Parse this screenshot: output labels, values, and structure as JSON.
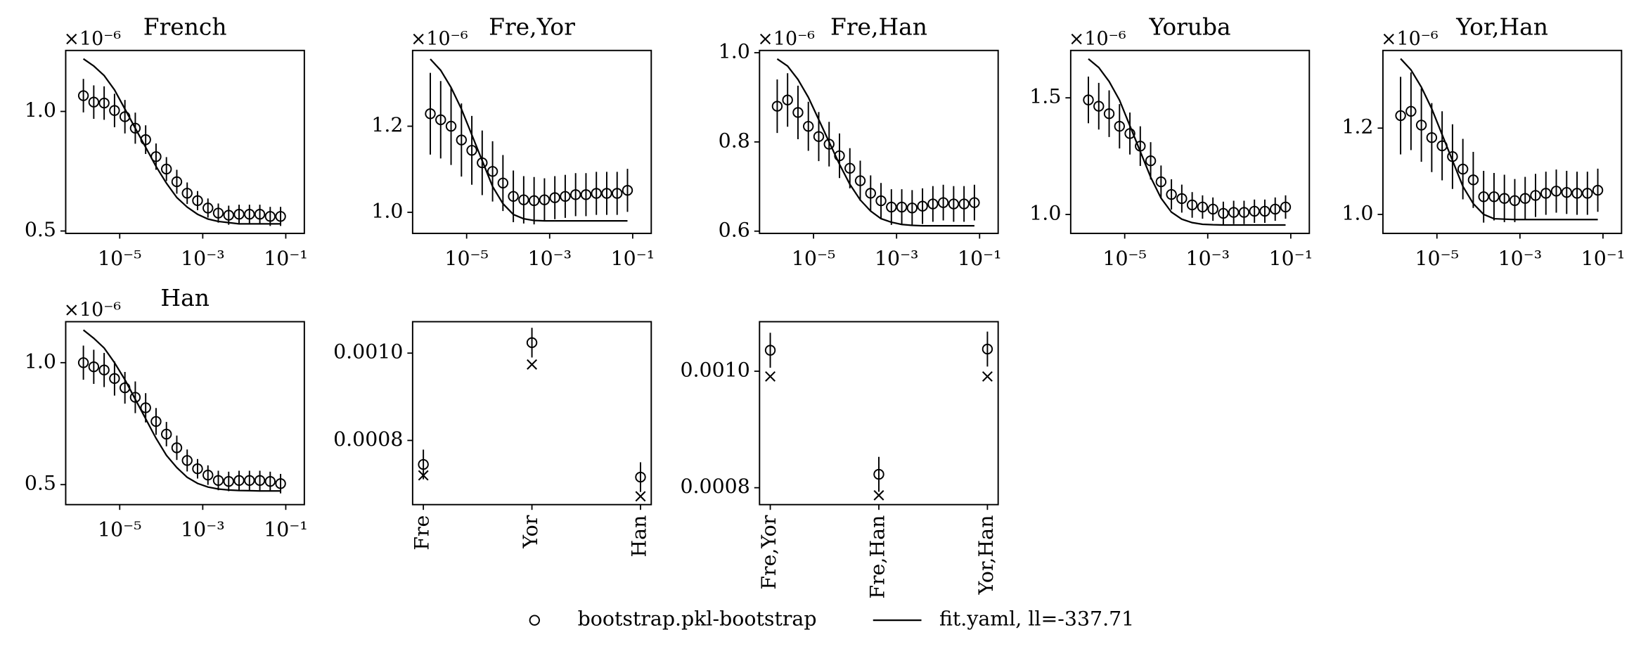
{
  "chart_data": [
    {
      "type": "line",
      "title": "French",
      "offset_label": "×10⁻⁶",
      "xscale": "log",
      "x": [
        1.334e-06,
        2.371e-06,
        4.217e-06,
        7.499e-06,
        1.334e-05,
        2.371e-05,
        4.217e-05,
        7.499e-05,
        0.0001334,
        0.0002371,
        0.0004217,
        0.0007499,
        0.001334,
        0.002371,
        0.004217,
        0.007499,
        0.01334,
        0.02371,
        0.04217,
        0.07499
      ],
      "xlim": [
        5e-07,
        0.28
      ],
      "xticks": [
        {
          "value": 1e-05,
          "label": "10⁻⁵"
        },
        {
          "value": 0.001,
          "label": "10⁻³"
        },
        {
          "value": 0.1,
          "label": "10⁻¹"
        }
      ],
      "ylim": [
        0.49,
        1.255
      ],
      "yticks": [
        0.5,
        {
          "value": 1,
          "label": "1.0"
        }
      ],
      "series": [
        {
          "name": "bootstrap.pkl-bootstrap",
          "marker": "circle",
          "values": [
            1.066,
            1.039,
            1.035,
            1.004,
            0.978,
            0.93,
            0.882,
            0.811,
            0.759,
            0.706,
            0.658,
            0.627,
            0.596,
            0.575,
            0.566,
            0.57,
            0.57,
            0.57,
            0.561,
            0.561
          ],
          "errors": [
            0.07,
            0.07,
            0.07,
            0.07,
            0.07,
            0.065,
            0.06,
            0.055,
            0.05,
            0.05,
            0.045,
            0.04,
            0.04,
            0.04,
            0.04,
            0.04,
            0.04,
            0.04,
            0.04,
            0.04
          ]
        },
        {
          "name": "fit.yaml, ll=-337.71",
          "marker": "line",
          "values": [
            1.22,
            1.19,
            1.15,
            1.09,
            1.01,
            0.93,
            0.85,
            0.77,
            0.7,
            0.64,
            0.6,
            0.57,
            0.55,
            0.54,
            0.535,
            0.53,
            0.53,
            0.53,
            0.53,
            0.53
          ]
        }
      ]
    },
    {
      "type": "line",
      "title": "Fre,Yor",
      "offset_label": "×10⁻⁶",
      "xscale": "log",
      "x": [
        1.334e-06,
        2.371e-06,
        4.217e-06,
        7.499e-06,
        1.334e-05,
        2.371e-05,
        4.217e-05,
        7.499e-05,
        0.0001334,
        0.0002371,
        0.0004217,
        0.0007499,
        0.001334,
        0.002371,
        0.004217,
        0.007499,
        0.01334,
        0.02371,
        0.04217,
        0.07499
      ],
      "xlim": [
        5e-07,
        0.28
      ],
      "xticks": [
        {
          "value": 1e-05,
          "label": "10⁻⁵"
        },
        {
          "value": 0.001,
          "label": "10⁻³"
        },
        {
          "value": 0.1,
          "label": "10⁻¹"
        }
      ],
      "ylim": [
        0.951,
        1.376
      ],
      "yticks": [
        {
          "value": 1,
          "label": "1.0"
        },
        1.2
      ],
      "series": [
        {
          "marker": "circle",
          "values": [
            1.229,
            1.215,
            1.2,
            1.168,
            1.144,
            1.115,
            1.095,
            1.068,
            1.037,
            1.029,
            1.027,
            1.029,
            1.034,
            1.037,
            1.041,
            1.041,
            1.044,
            1.044,
            1.044,
            1.051
          ],
          "errors": [
            0.095,
            0.09,
            0.09,
            0.085,
            0.08,
            0.075,
            0.07,
            0.065,
            0.06,
            0.055,
            0.055,
            0.05,
            0.05,
            0.05,
            0.05,
            0.05,
            0.05,
            0.05,
            0.05,
            0.05
          ]
        },
        {
          "marker": "line",
          "values": [
            1.356,
            1.33,
            1.29,
            1.24,
            1.18,
            1.12,
            1.06,
            1.02,
            0.995,
            0.985,
            0.981,
            0.98,
            0.98,
            0.98,
            0.98,
            0.98,
            0.98,
            0.98,
            0.98,
            0.98
          ]
        }
      ]
    },
    {
      "type": "line",
      "title": "Fre,Han",
      "offset_label": "×10⁻⁶",
      "xscale": "log",
      "x": [
        1.334e-06,
        2.371e-06,
        4.217e-06,
        7.499e-06,
        1.334e-05,
        2.371e-05,
        4.217e-05,
        7.499e-05,
        0.0001334,
        0.0002371,
        0.0004217,
        0.0007499,
        0.001334,
        0.002371,
        0.004217,
        0.007499,
        0.01334,
        0.02371,
        0.04217,
        0.07499
      ],
      "xlim": [
        5e-07,
        0.28
      ],
      "xticks": [
        {
          "value": 1e-05,
          "label": "10⁻⁵"
        },
        {
          "value": 0.001,
          "label": "10⁻³"
        },
        {
          "value": 0.1,
          "label": "10⁻¹"
        }
      ],
      "ylim": [
        0.595,
        1.005
      ],
      "yticks": [
        0.6,
        0.8,
        {
          "value": 1,
          "label": "1.0"
        }
      ],
      "series": [
        {
          "marker": "circle",
          "values": [
            0.88,
            0.894,
            0.866,
            0.835,
            0.812,
            0.795,
            0.769,
            0.741,
            0.713,
            0.685,
            0.668,
            0.654,
            0.654,
            0.652,
            0.656,
            0.661,
            0.664,
            0.661,
            0.661,
            0.664
          ],
          "errors": [
            0.06,
            0.06,
            0.06,
            0.055,
            0.055,
            0.05,
            0.05,
            0.045,
            0.045,
            0.04,
            0.04,
            0.04,
            0.04,
            0.04,
            0.04,
            0.04,
            0.04,
            0.04,
            0.04,
            0.04
          ]
        },
        {
          "marker": "line",
          "values": [
            0.986,
            0.97,
            0.94,
            0.9,
            0.85,
            0.8,
            0.75,
            0.705,
            0.67,
            0.645,
            0.628,
            0.62,
            0.615,
            0.613,
            0.612,
            0.612,
            0.612,
            0.612,
            0.612,
            0.612
          ]
        }
      ]
    },
    {
      "type": "line",
      "title": "Yoruba",
      "offset_label": "×10⁻⁶",
      "xscale": "log",
      "x": [
        1.334e-06,
        2.371e-06,
        4.217e-06,
        7.499e-06,
        1.334e-05,
        2.371e-05,
        4.217e-05,
        7.499e-05,
        0.0001334,
        0.0002371,
        0.0004217,
        0.0007499,
        0.001334,
        0.002371,
        0.004217,
        0.007499,
        0.01334,
        0.02371,
        0.04217,
        0.07499
      ],
      "xlim": [
        5e-07,
        0.28
      ],
      "xticks": [
        {
          "value": 1e-05,
          "label": "10⁻⁵"
        },
        {
          "value": 0.001,
          "label": "10⁻³"
        },
        {
          "value": 0.1,
          "label": "10⁻¹"
        }
      ],
      "ylim": [
        0.919,
        1.703
      ],
      "yticks": [
        {
          "value": 1,
          "label": "1.0"
        },
        1.5
      ],
      "series": [
        {
          "marker": "circle",
          "values": [
            1.491,
            1.464,
            1.432,
            1.378,
            1.347,
            1.293,
            1.23,
            1.14,
            1.086,
            1.068,
            1.041,
            1.032,
            1.023,
            1.005,
            1.009,
            1.009,
            1.014,
            1.014,
            1.023,
            1.032
          ],
          "errors": [
            0.1,
            0.1,
            0.1,
            0.095,
            0.09,
            0.085,
            0.08,
            0.07,
            0.065,
            0.06,
            0.055,
            0.05,
            0.05,
            0.05,
            0.05,
            0.05,
            0.05,
            0.05,
            0.05,
            0.05
          ]
        },
        {
          "marker": "line",
          "values": [
            1.667,
            1.63,
            1.57,
            1.49,
            1.38,
            1.27,
            1.16,
            1.07,
            1.01,
            0.98,
            0.965,
            0.958,
            0.956,
            0.955,
            0.955,
            0.955,
            0.955,
            0.955,
            0.955,
            0.955
          ]
        }
      ]
    },
    {
      "type": "line",
      "title": "Yor,Han",
      "offset_label": "×10⁻⁶",
      "xscale": "log",
      "x": [
        1.334e-06,
        2.371e-06,
        4.217e-06,
        7.499e-06,
        1.334e-05,
        2.371e-05,
        4.217e-05,
        7.499e-05,
        0.0001334,
        0.0002371,
        0.0004217,
        0.0007499,
        0.001334,
        0.002371,
        0.004217,
        0.007499,
        0.01334,
        0.02371,
        0.04217,
        0.07499
      ],
      "xlim": [
        5e-07,
        0.28
      ],
      "xticks": [
        {
          "value": 1e-05,
          "label": "10⁻⁵"
        },
        {
          "value": 0.001,
          "label": "10⁻³"
        },
        {
          "value": 0.1,
          "label": "10⁻¹"
        }
      ],
      "ylim": [
        0.956,
        1.38
      ],
      "yticks": [
        {
          "value": 1,
          "label": "1.0"
        },
        1.2
      ],
      "series": [
        {
          "marker": "circle",
          "values": [
            1.229,
            1.239,
            1.207,
            1.178,
            1.159,
            1.134,
            1.105,
            1.08,
            1.041,
            1.041,
            1.037,
            1.032,
            1.037,
            1.044,
            1.049,
            1.054,
            1.051,
            1.049,
            1.049,
            1.056
          ],
          "errors": [
            0.09,
            0.09,
            0.085,
            0.08,
            0.08,
            0.075,
            0.07,
            0.065,
            0.06,
            0.055,
            0.055,
            0.05,
            0.05,
            0.05,
            0.05,
            0.05,
            0.05,
            0.05,
            0.05,
            0.05
          ]
        },
        {
          "marker": "line",
          "values": [
            1.361,
            1.335,
            1.295,
            1.245,
            1.185,
            1.125,
            1.065,
            1.025,
            1.0,
            0.99,
            0.989,
            0.988,
            0.988,
            0.988,
            0.988,
            0.988,
            0.988,
            0.988,
            0.988,
            0.988
          ]
        }
      ]
    },
    {
      "type": "line",
      "title": "Han",
      "offset_label": "×10⁻⁶",
      "xscale": "log",
      "x": [
        1.334e-06,
        2.371e-06,
        4.217e-06,
        7.499e-06,
        1.334e-05,
        2.371e-05,
        4.217e-05,
        7.499e-05,
        0.0001334,
        0.0002371,
        0.0004217,
        0.0007499,
        0.001334,
        0.002371,
        0.004217,
        0.007499,
        0.01334,
        0.02371,
        0.04217,
        0.07499
      ],
      "xlim": [
        5e-07,
        0.28
      ],
      "xticks": [
        {
          "value": 1e-05,
          "label": "10⁻⁵"
        },
        {
          "value": 0.001,
          "label": "10⁻³"
        },
        {
          "value": 0.1,
          "label": "10⁻¹"
        }
      ],
      "ylim": [
        0.418,
        1.168
      ],
      "yticks": [
        0.5,
        {
          "value": 1,
          "label": "1.0"
        }
      ],
      "series": [
        {
          "marker": "circle",
          "values": [
            1.0,
            0.983,
            0.97,
            0.935,
            0.897,
            0.858,
            0.815,
            0.759,
            0.707,
            0.651,
            0.599,
            0.565,
            0.539,
            0.517,
            0.513,
            0.517,
            0.517,
            0.517,
            0.513,
            0.504
          ],
          "errors": [
            0.07,
            0.07,
            0.07,
            0.07,
            0.065,
            0.065,
            0.06,
            0.055,
            0.05,
            0.05,
            0.045,
            0.04,
            0.04,
            0.04,
            0.04,
            0.04,
            0.04,
            0.04,
            0.04,
            0.04
          ]
        },
        {
          "marker": "line",
          "values": [
            1.134,
            1.1,
            1.06,
            1.0,
            0.93,
            0.85,
            0.77,
            0.69,
            0.62,
            0.57,
            0.53,
            0.505,
            0.49,
            0.482,
            0.478,
            0.476,
            0.475,
            0.474,
            0.474,
            0.474
          ]
        }
      ]
    },
    {
      "type": "dot",
      "categories": [
        "Fre",
        "Yor",
        "Han"
      ],
      "ylim": [
        0.000653,
        0.001072
      ],
      "yticks": [
        0.0008,
        {
          "value": 0.001,
          "label": "0.0010"
        }
      ],
      "series": [
        {
          "marker": "circle",
          "values": [
            0.000745,
            0.001024,
            0.000716
          ],
          "errors": [
            3.4e-05,
            3.4e-05,
            3.4e-05
          ]
        },
        {
          "marker": "x",
          "values": [
            0.00072,
            0.000974,
            0.000672
          ]
        }
      ]
    },
    {
      "type": "dot",
      "categories": [
        "Fre,Yor",
        "Fre,Han",
        "Yor,Han"
      ],
      "ylim": [
        0.000771,
        0.001085
      ],
      "yticks": [
        0.0008,
        {
          "value": 0.001,
          "label": "0.0010"
        }
      ],
      "series": [
        {
          "marker": "circle",
          "values": [
            0.001036,
            0.000823,
            0.001038
          ],
          "errors": [
            3e-05,
            3e-05,
            3e-05
          ]
        },
        {
          "marker": "x",
          "values": [
            0.000991,
            0.000787,
            0.000991
          ]
        }
      ]
    }
  ]
}
